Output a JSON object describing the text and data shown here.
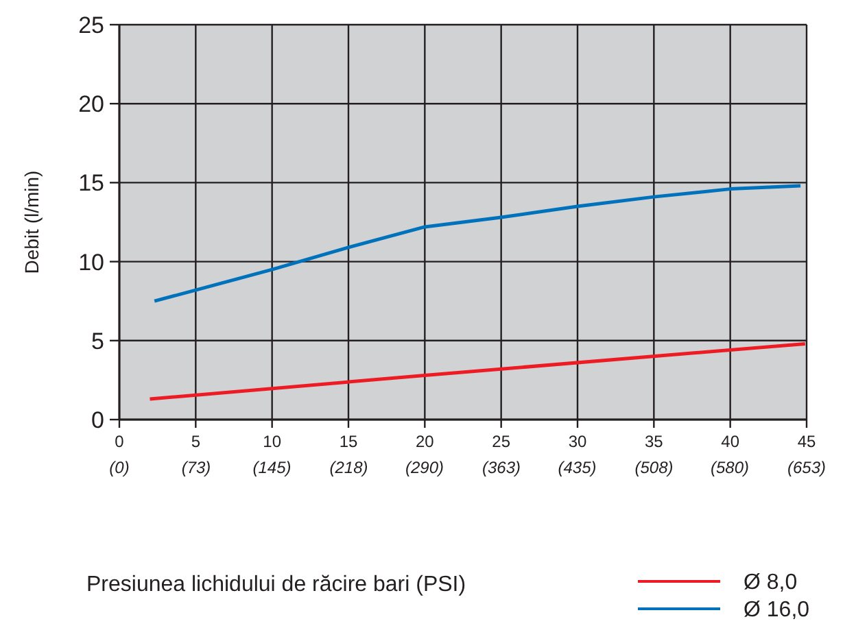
{
  "chart_data": {
    "type": "line",
    "xlabel": "Presiunea lichidului de răcire bari (PSI)",
    "ylabel": "Debit (l/min)",
    "xlim": [
      0,
      45
    ],
    "xticks": [
      0,
      5,
      10,
      15,
      20,
      25,
      30,
      35,
      40,
      45
    ],
    "x2lim": [
      0,
      653
    ],
    "x2ticks": [
      {
        "value": 0,
        "label": "(0)"
      },
      {
        "value": 73,
        "label": "(73)"
      },
      {
        "value": 145,
        "label": "(145)"
      },
      {
        "value": 218,
        "label": "(218)"
      },
      {
        "value": 290,
        "label": "(290)"
      },
      {
        "value": 363,
        "label": "(363)"
      },
      {
        "value": 435,
        "label": "(435)"
      },
      {
        "value": 508,
        "label": "(508)"
      },
      {
        "value": 580,
        "label": "(580)"
      },
      {
        "value": 653,
        "label": "(653)"
      }
    ],
    "ylim": [
      0,
      25
    ],
    "yticks": [
      0,
      5,
      10,
      15,
      20,
      25
    ],
    "grid": true,
    "legend": "bottom right",
    "line_style": "solid",
    "series": [
      {
        "name": "Ø 8,0",
        "color": "#ed1c24",
        "x": [
          2,
          20,
          44.9
        ],
        "values": [
          1.3,
          2.8,
          4.8
        ]
      },
      {
        "name": "Ø 16,0",
        "color": "#0072bc",
        "x": [
          2.3,
          5,
          10,
          15,
          20,
          25,
          30,
          35,
          40,
          44.6
        ],
        "values": [
          7.5,
          8.2,
          9.5,
          10.9,
          12.2,
          12.8,
          13.5,
          14.1,
          14.6,
          14.8
        ]
      }
    ]
  }
}
